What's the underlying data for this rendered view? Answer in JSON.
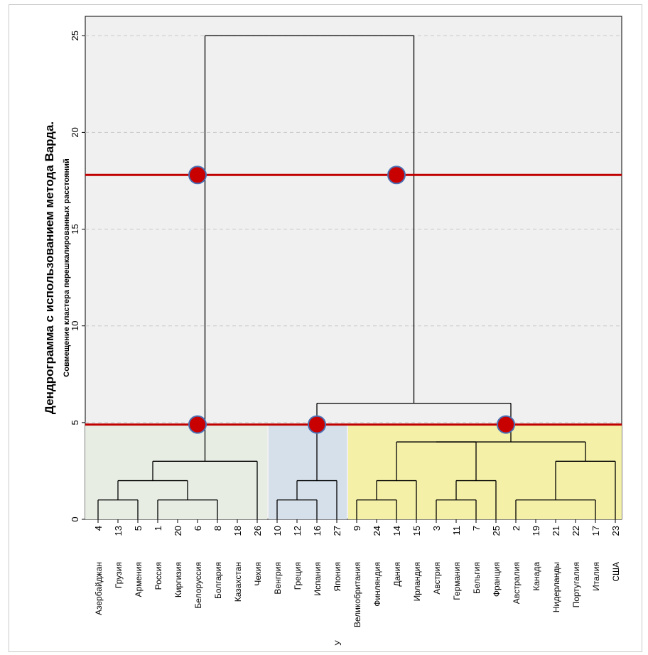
{
  "chart_data": {
    "type": "dendrogram",
    "title": "Дендрограмма с использованием метода Варда.",
    "subtitle": "Совмещение кластера перешкалированных расстояний",
    "ylim": [
      0,
      26
    ],
    "yticks": [
      0,
      5,
      10,
      15,
      20,
      25
    ],
    "grid": true,
    "leaves": [
      {
        "id": "4",
        "name": "Азербайджан"
      },
      {
        "id": "13",
        "name": "Грузия"
      },
      {
        "id": "5",
        "name": "Армения"
      },
      {
        "id": "1",
        "name": "Россия"
      },
      {
        "id": "20",
        "name": "Киргизия"
      },
      {
        "id": "6",
        "name": "Белоруссия"
      },
      {
        "id": "8",
        "name": "Болгария"
      },
      {
        "id": "18",
        "name": "Казахстан"
      },
      {
        "id": "26",
        "name": "Чехия"
      },
      {
        "id": "10",
        "name": "Венгрия"
      },
      {
        "id": "12",
        "name": "Греция"
      },
      {
        "id": "16",
        "name": "Испания"
      },
      {
        "id": "27",
        "name": "Япония"
      },
      {
        "id": "9",
        "name": "Великобритания"
      },
      {
        "id": "24",
        "name": "Финляндия"
      },
      {
        "id": "14",
        "name": "Дания"
      },
      {
        "id": "15",
        "name": "Ирландия"
      },
      {
        "id": "3",
        "name": "Австрия"
      },
      {
        "id": "11",
        "name": "Германия"
      },
      {
        "id": "7",
        "name": "Бельгия"
      },
      {
        "id": "25",
        "name": "Франция"
      },
      {
        "id": "2",
        "name": "Австралия"
      },
      {
        "id": "19",
        "name": "Канада"
      },
      {
        "id": "21",
        "name": "Нидерланды"
      },
      {
        "id": "22",
        "name": "Португалия"
      },
      {
        "id": "17",
        "name": "Италия"
      },
      {
        "id": "23",
        "name": "США"
      }
    ],
    "stray_label": "У",
    "merges": [
      {
        "left": 0,
        "right": 2,
        "height": 1
      },
      {
        "left": 3,
        "right": 6,
        "height": 1
      },
      {
        "left": 0,
        "right": 3,
        "height": 2
      },
      {
        "left": 0,
        "right": 8,
        "height": 3
      },
      {
        "left": 9,
        "right": 11,
        "height": 1
      },
      {
        "left": 9,
        "right": 12,
        "height": 2
      },
      {
        "left": 13,
        "right": 15,
        "height": 1
      },
      {
        "left": 13,
        "right": 16,
        "height": 2
      },
      {
        "left": 17,
        "right": 19,
        "height": 1
      },
      {
        "left": 17,
        "right": 20,
        "height": 2
      },
      {
        "left": 13,
        "right": 17,
        "height": 4
      },
      {
        "left": 21,
        "right": 25,
        "height": 1
      },
      {
        "left": 21,
        "right": 26,
        "height": 3
      },
      {
        "left": 13,
        "right": 21,
        "height": 4
      },
      {
        "left": 9,
        "right": 13,
        "height": 6
      },
      {
        "left": 0,
        "right": 9,
        "height": 25
      }
    ],
    "cluster_bands": [
      {
        "from_leaf": 0,
        "to_leaf": 8,
        "color": "#e7ede3"
      },
      {
        "from_leaf": 9,
        "to_leaf": 12,
        "color": "#d6e0ea"
      },
      {
        "from_leaf": 13,
        "to_leaf": 26,
        "color": "#f4f0a8"
      }
    ],
    "cut_lines": [
      {
        "height": 17.8,
        "color": "#c00000"
      },
      {
        "height": 4.9,
        "color": "#c00000"
      }
    ],
    "markers": [
      {
        "height": 17.8,
        "leaf_pos": 5
      },
      {
        "height": 17.8,
        "leaf_pos": 15
      },
      {
        "height": 4.9,
        "leaf_pos": 5
      },
      {
        "height": 4.9,
        "leaf_pos": 11
      },
      {
        "height": 4.9,
        "leaf_pos": 20.5
      }
    ],
    "colors": {
      "plot_bg": "#f0f0f0",
      "grid": "#c8c8c8",
      "tree": "#000000",
      "cut": "#c00000",
      "marker_fill": "#c80000",
      "marker_stroke": "#4a6fb5"
    }
  }
}
